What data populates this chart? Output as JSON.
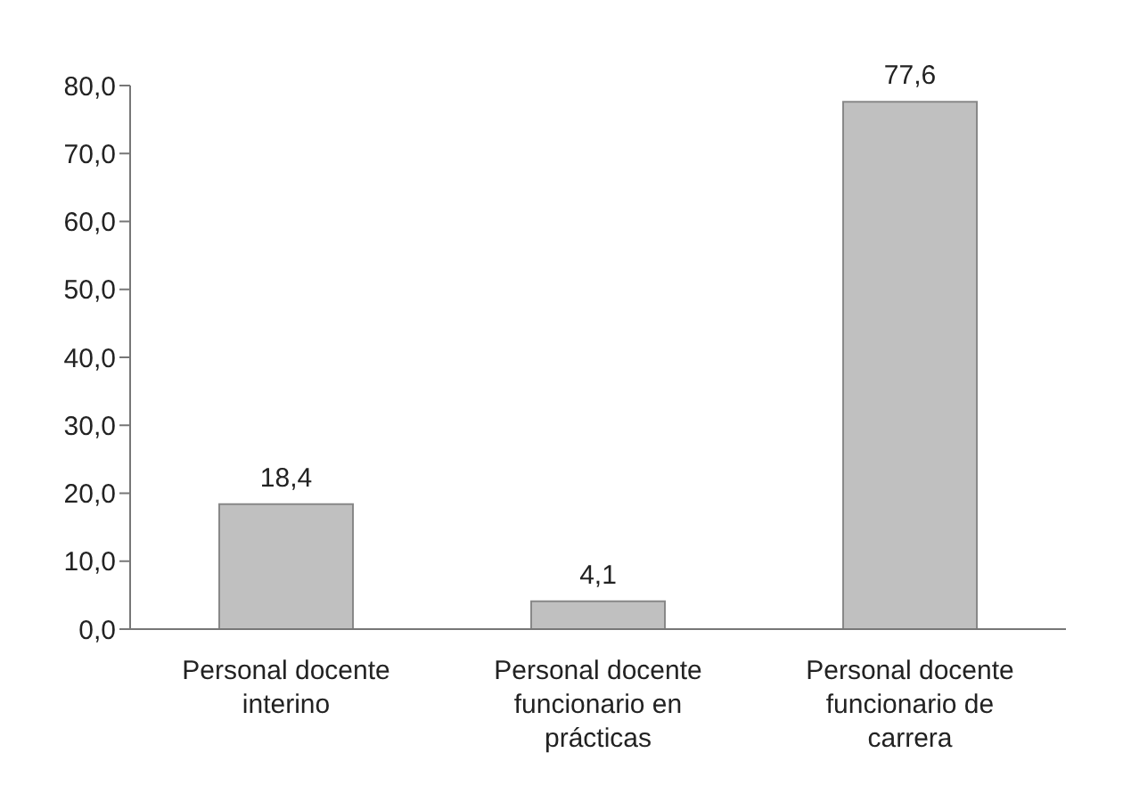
{
  "chart_data": {
    "type": "bar",
    "categories": [
      "Personal docente interino",
      "Personal docente funcionario en prácticas",
      "Personal docente funcionario de carrera"
    ],
    "values": [
      18.4,
      4.1,
      77.6
    ],
    "color": "#c0c0c0",
    "data_labels": true,
    "value_labels": [
      "18,4",
      "4,1",
      "77,6"
    ],
    "ylim": [
      0,
      80
    ],
    "yticks": [
      {
        "value": 0,
        "label": "0,0"
      },
      {
        "value": 10,
        "label": "10,0"
      },
      {
        "value": 20,
        "label": "20,0"
      },
      {
        "value": 30,
        "label": "30,0"
      },
      {
        "value": 40,
        "label": "40,0"
      },
      {
        "value": 50,
        "label": "50,0"
      },
      {
        "value": 60,
        "label": "60,0"
      },
      {
        "value": 70,
        "label": "70,0"
      },
      {
        "value": 80,
        "label": "80,0"
      }
    ],
    "grid": false
  }
}
